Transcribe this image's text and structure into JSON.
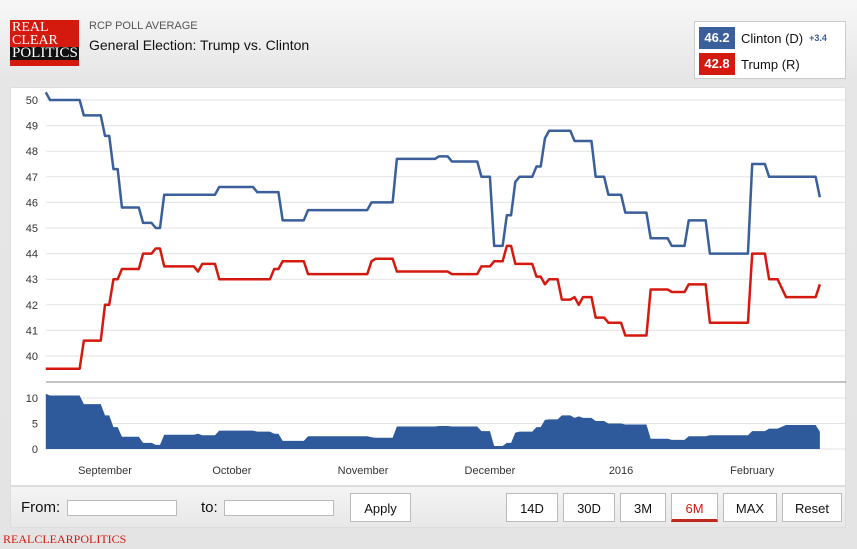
{
  "header": {
    "logo_lines": [
      "REAL",
      "CLEAR",
      "POLITICS"
    ],
    "kicker": "RCP POLL AVERAGE",
    "title": "General Election: Trump vs. Clinton"
  },
  "legend": {
    "clinton": {
      "value": "46.2",
      "label": "Clinton (D)",
      "spread": "+3.4",
      "color": "#3a5f9a"
    },
    "trump": {
      "value": "42.8",
      "label": "Trump (R)",
      "color": "#d4190f"
    }
  },
  "controls": {
    "from_label": "From:",
    "from_value": "",
    "to_label": "to:",
    "to_value": "",
    "apply": "Apply",
    "ranges": [
      "14D",
      "30D",
      "3M",
      "6M",
      "MAX",
      "Reset"
    ],
    "active_range": "6M"
  },
  "footer": "REALCLEARPOLITICS",
  "chart_data": {
    "type": "line",
    "x_ticks": [
      {
        "date": "2015-09-01",
        "label": "September"
      },
      {
        "date": "2015-10-01",
        "label": "October"
      },
      {
        "date": "2015-11-01",
        "label": "November"
      },
      {
        "date": "2015-12-01",
        "label": "December"
      },
      {
        "date": "2016-01-01",
        "label": "2016"
      },
      {
        "date": "2016-02-01",
        "label": "February"
      }
    ],
    "y_ticks": [
      40,
      41,
      42,
      43,
      44,
      45,
      46,
      47,
      48,
      49,
      50
    ],
    "spread_ticks": [
      0,
      5,
      10
    ],
    "ylim": [
      39,
      50.3
    ],
    "spread_ylim": [
      0,
      10.5
    ],
    "grid": true,
    "dates": [
      "2015-08-18",
      "2015-08-19",
      "2015-08-26",
      "2015-08-27",
      "2015-08-31",
      "2015-09-01",
      "2015-09-02",
      "2015-09-03",
      "2015-09-04",
      "2015-09-05",
      "2015-09-09",
      "2015-09-10",
      "2015-09-12",
      "2015-09-13",
      "2015-09-14",
      "2015-09-15",
      "2015-09-22",
      "2015-09-23",
      "2015-09-24",
      "2015-09-27",
      "2015-09-28",
      "2015-10-06",
      "2015-10-07",
      "2015-10-10",
      "2015-10-11",
      "2015-10-12",
      "2015-10-13",
      "2015-10-18",
      "2015-10-19",
      "2015-11-02",
      "2015-11-03",
      "2015-11-04",
      "2015-11-08",
      "2015-11-09",
      "2015-11-18",
      "2015-11-19",
      "2015-11-21",
      "2015-11-22",
      "2015-11-28",
      "2015-11-29",
      "2015-12-01",
      "2015-12-02",
      "2015-12-04",
      "2015-12-05",
      "2015-12-06",
      "2015-12-07",
      "2015-12-08",
      "2015-12-11",
      "2015-12-12",
      "2015-12-13",
      "2015-12-14",
      "2015-12-15",
      "2015-12-17",
      "2015-12-18",
      "2015-12-20",
      "2015-12-21",
      "2015-12-22",
      "2015-12-23",
      "2015-12-25",
      "2015-12-26",
      "2015-12-28",
      "2015-12-29",
      "2016-01-01",
      "2016-01-02",
      "2016-01-07",
      "2016-01-08",
      "2016-01-12",
      "2016-01-13",
      "2016-01-16",
      "2016-01-17",
      "2016-01-21",
      "2016-01-22",
      "2016-01-31",
      "2016-02-01",
      "2016-02-04",
      "2016-02-05",
      "2016-02-07",
      "2016-02-09",
      "2016-02-16",
      "2016-02-17"
    ],
    "series": [
      {
        "name": "Clinton (D)",
        "color": "#3a5f9a",
        "values": [
          50.3,
          50.0,
          50.0,
          49.4,
          49.4,
          48.6,
          48.6,
          47.3,
          47.3,
          45.8,
          45.8,
          45.2,
          45.2,
          45.0,
          45.0,
          46.3,
          46.3,
          46.3,
          46.3,
          46.3,
          46.6,
          46.6,
          46.4,
          46.4,
          46.4,
          46.4,
          45.3,
          45.3,
          45.7,
          45.7,
          46.0,
          46.0,
          46.0,
          47.7,
          47.7,
          47.8,
          47.8,
          47.6,
          47.6,
          47.0,
          47.0,
          44.3,
          44.3,
          45.5,
          45.5,
          46.8,
          47.0,
          47.0,
          47.4,
          47.4,
          48.5,
          48.8,
          48.8,
          48.8,
          48.8,
          48.4,
          48.4,
          48.4,
          48.4,
          47.0,
          47.0,
          46.3,
          46.3,
          45.6,
          45.6,
          44.6,
          44.6,
          44.3,
          44.3,
          45.3,
          45.3,
          44.0,
          44.0,
          47.5,
          47.5,
          47.0,
          47.0,
          47.0,
          47.0,
          46.2
        ]
      },
      {
        "name": "Trump (R)",
        "color": "#d4190f",
        "values": [
          39.5,
          39.5,
          39.5,
          40.6,
          40.6,
          42.0,
          42.0,
          43.0,
          43.0,
          43.4,
          43.4,
          44.0,
          44.0,
          44.2,
          44.2,
          43.5,
          43.5,
          43.3,
          43.6,
          43.6,
          43.0,
          43.0,
          43.0,
          43.0,
          43.4,
          43.4,
          43.7,
          43.7,
          43.2,
          43.2,
          43.7,
          43.8,
          43.8,
          43.3,
          43.3,
          43.3,
          43.3,
          43.2,
          43.2,
          43.5,
          43.5,
          43.7,
          43.7,
          44.3,
          44.3,
          43.6,
          43.6,
          43.6,
          43.1,
          43.1,
          42.8,
          43.0,
          43.0,
          42.2,
          42.2,
          42.3,
          42.0,
          42.3,
          42.3,
          41.5,
          41.5,
          41.3,
          41.3,
          40.8,
          40.8,
          42.6,
          42.6,
          42.5,
          42.5,
          42.8,
          42.8,
          41.3,
          41.3,
          44.0,
          44.0,
          43.0,
          43.0,
          42.3,
          42.3,
          42.8
        ]
      }
    ],
    "spread_color": "#2e5a9c"
  }
}
